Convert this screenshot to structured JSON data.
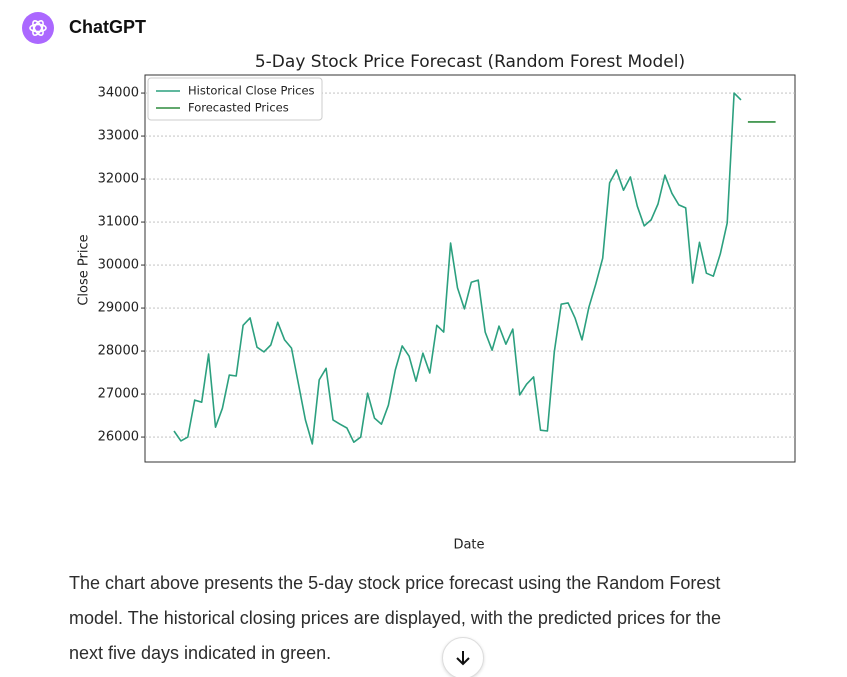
{
  "header": {
    "app": "ChatGPT"
  },
  "chart_data": {
    "type": "line",
    "title": "5-Day Stock Price Forecast (Random Forest Model)",
    "x_label": "Date",
    "y_label": "Close Price",
    "categories": [
      null,
      null,
      null,
      null,
      null,
      null,
      null,
      null,
      null,
      null,
      null,
      null,
      null,
      null,
      null,
      null,
      null,
      null,
      null,
      null,
      null,
      null,
      null,
      null,
      null,
      null,
      null,
      null,
      null,
      null,
      null,
      null,
      null,
      null,
      null,
      null,
      null,
      null,
      null,
      null,
      null,
      null,
      null,
      null,
      null,
      null,
      null,
      null,
      null,
      null,
      null,
      null,
      null,
      null,
      null,
      null,
      null,
      null,
      null,
      null,
      null,
      null,
      null,
      null,
      null,
      null,
      null,
      null,
      null,
      null,
      null,
      null,
      null,
      null,
      null,
      null,
      null,
      null,
      null,
      null,
      null,
      null,
      null,
      null,
      null,
      null,
      null,
      null
    ],
    "series": [
      {
        "name": "Historical Close Prices",
        "color": "#2ca07f",
        "values": [
          26140,
          25910,
          26000,
          26860,
          26810,
          27930,
          26230,
          26670,
          27440,
          27420,
          28600,
          28770,
          28090,
          27980,
          28140,
          28670,
          28260,
          28070,
          27230,
          26400,
          25840,
          27330,
          27600,
          26400,
          26300,
          26210,
          25880,
          26000,
          27020,
          26440,
          26300,
          26740,
          27560,
          28120,
          27880,
          27300,
          27950,
          27490,
          28600,
          28440,
          30510,
          29470,
          28980,
          29600,
          29650,
          28440,
          28020,
          28580,
          28160,
          28510,
          26980,
          27230,
          27400,
          26160,
          26140,
          27980,
          29090,
          29120,
          28770,
          28260,
          29020,
          29560,
          30160,
          31910,
          32210,
          31740,
          32050,
          31370,
          30910,
          31050,
          31420,
          32090,
          31670,
          31400,
          31330,
          29580,
          30530,
          29810,
          29740,
          30260,
          30980,
          34000,
          33840,
          null,
          null,
          null,
          null,
          null
        ]
      },
      {
        "name": "Forecasted Prices",
        "color": "#2e8b3d",
        "values": [
          null,
          null,
          null,
          null,
          null,
          null,
          null,
          null,
          null,
          null,
          null,
          null,
          null,
          null,
          null,
          null,
          null,
          null,
          null,
          null,
          null,
          null,
          null,
          null,
          null,
          null,
          null,
          null,
          null,
          null,
          null,
          null,
          null,
          null,
          null,
          null,
          null,
          null,
          null,
          null,
          null,
          null,
          null,
          null,
          null,
          null,
          null,
          null,
          null,
          null,
          null,
          null,
          null,
          null,
          null,
          null,
          null,
          null,
          null,
          null,
          null,
          null,
          null,
          null,
          null,
          null,
          null,
          null,
          null,
          null,
          null,
          null,
          null,
          null,
          null,
          null,
          null,
          null,
          null,
          null,
          null,
          null,
          null,
          33330,
          33330,
          33330,
          33330,
          33330
        ]
      }
    ],
    "ylim": [
      25420,
      34420
    ],
    "yticks": [
      26000,
      27000,
      28000,
      29000,
      30000,
      31000,
      32000,
      33000,
      34000
    ],
    "grid": true,
    "legend": "upper left"
  },
  "message": {
    "lines": [
      "The chart above presents the 5-day stock price forecast using the Random Forest",
      "model. The historical closing prices are displayed, with the predicted prices for the",
      "next five days indicated in green."
    ]
  }
}
